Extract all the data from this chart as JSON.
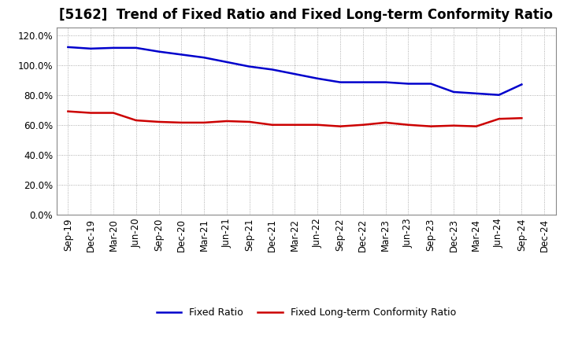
{
  "title": "[5162]  Trend of Fixed Ratio and Fixed Long-term Conformity Ratio",
  "x_labels": [
    "Sep-19",
    "Dec-19",
    "Mar-20",
    "Jun-20",
    "Sep-20",
    "Dec-20",
    "Mar-21",
    "Jun-21",
    "Sep-21",
    "Dec-21",
    "Mar-22",
    "Jun-22",
    "Sep-22",
    "Dec-22",
    "Mar-23",
    "Jun-23",
    "Sep-23",
    "Dec-23",
    "Mar-24",
    "Jun-24",
    "Sep-24",
    "Dec-24"
  ],
  "fixed_ratio": [
    1.12,
    1.11,
    1.115,
    1.115,
    1.09,
    1.07,
    1.05,
    1.02,
    0.99,
    0.97,
    0.94,
    0.91,
    0.885,
    0.885,
    0.885,
    0.875,
    0.875,
    0.82,
    0.81,
    0.8,
    0.87,
    null
  ],
  "fixed_lt_ratio": [
    0.69,
    0.68,
    0.68,
    0.63,
    0.62,
    0.615,
    0.615,
    0.625,
    0.62,
    0.6,
    0.6,
    0.6,
    0.59,
    0.6,
    0.615,
    0.6,
    0.59,
    0.595,
    0.59,
    0.64,
    0.645,
    null
  ],
  "ylim": [
    0.0,
    1.25
  ],
  "yticks": [
    0.0,
    0.2,
    0.4,
    0.6,
    0.8,
    1.0,
    1.2
  ],
  "line_color_blue": "#0000cc",
  "line_color_red": "#cc0000",
  "legend_fixed_ratio": "Fixed Ratio",
  "legend_fixed_lt_ratio": "Fixed Long-term Conformity Ratio",
  "background_color": "#ffffff",
  "grid_color": "#999999",
  "title_fontsize": 12,
  "axis_fontsize": 8.5
}
